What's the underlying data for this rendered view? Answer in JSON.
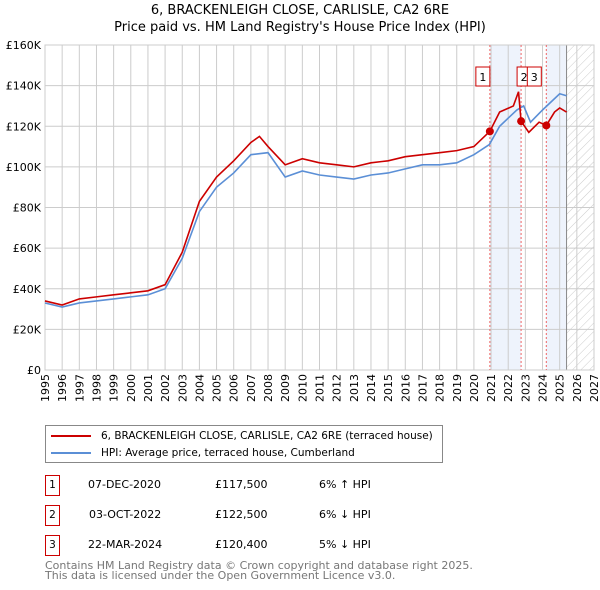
{
  "title": "6, BRACKENLEIGH CLOSE, CARLISLE, CA2 6RE",
  "subtitle": "Price paid vs. HM Land Registry's House Price Index (HPI)",
  "colors": {
    "property": "#cc0000",
    "hpi": "#5b8fd6",
    "shade": "#eef3fc"
  },
  "chart_data": {
    "type": "line",
    "xlim": [
      1995,
      2027
    ],
    "ylim": [
      0,
      160000
    ],
    "x_ticks": [
      "1995",
      "1996",
      "1997",
      "1998",
      "1999",
      "2000",
      "2001",
      "2002",
      "2003",
      "2004",
      "2005",
      "2006",
      "2007",
      "2008",
      "2009",
      "2010",
      "2011",
      "2012",
      "2013",
      "2014",
      "2015",
      "2016",
      "2017",
      "2018",
      "2019",
      "2020",
      "2021",
      "2022",
      "2023",
      "2024",
      "2025",
      "2026",
      "2027"
    ],
    "y_ticks": [
      {
        "v": 0,
        "label": "£0"
      },
      {
        "v": 20000,
        "label": "£20K"
      },
      {
        "v": 40000,
        "label": "£40K"
      },
      {
        "v": 60000,
        "label": "£60K"
      },
      {
        "v": 80000,
        "label": "£80K"
      },
      {
        "v": 100000,
        "label": "£100K"
      },
      {
        "v": 120000,
        "label": "£120K"
      },
      {
        "v": 140000,
        "label": "£140K"
      },
      {
        "v": 160000,
        "label": "£160K"
      }
    ],
    "data_end": 2025.4,
    "series": [
      {
        "name": "6, BRACKENLEIGH CLOSE, CARLISLE, CA2 6RE (terraced house)",
        "key": "property",
        "points": [
          [
            1995,
            34000
          ],
          [
            1996,
            32000
          ],
          [
            1997,
            35000
          ],
          [
            1998,
            36000
          ],
          [
            1999,
            37000
          ],
          [
            2000,
            38000
          ],
          [
            2001,
            39000
          ],
          [
            2002,
            42000
          ],
          [
            2003,
            58000
          ],
          [
            2004,
            83000
          ],
          [
            2005,
            95000
          ],
          [
            2006,
            103000
          ],
          [
            2007,
            112000
          ],
          [
            2007.5,
            115000
          ],
          [
            2008,
            110000
          ],
          [
            2009,
            101000
          ],
          [
            2010,
            104000
          ],
          [
            2011,
            102000
          ],
          [
            2012,
            101000
          ],
          [
            2013,
            100000
          ],
          [
            2014,
            102000
          ],
          [
            2015,
            103000
          ],
          [
            2016,
            105000
          ],
          [
            2017,
            106000
          ],
          [
            2018,
            107000
          ],
          [
            2019,
            108000
          ],
          [
            2020,
            110000
          ],
          [
            2020.93,
            117500
          ],
          [
            2021.5,
            127000
          ],
          [
            2022.3,
            130000
          ],
          [
            2022.6,
            137000
          ],
          [
            2022.75,
            122500
          ],
          [
            2023.2,
            117000
          ],
          [
            2023.8,
            122000
          ],
          [
            2024.22,
            120400
          ],
          [
            2024.7,
            127000
          ],
          [
            2025,
            129000
          ],
          [
            2025.4,
            127000
          ]
        ]
      },
      {
        "name": "HPI: Average price, terraced house, Cumberland",
        "key": "hpi",
        "points": [
          [
            1995,
            33000
          ],
          [
            1996,
            31000
          ],
          [
            1997,
            33000
          ],
          [
            1998,
            34000
          ],
          [
            1999,
            35000
          ],
          [
            2000,
            36000
          ],
          [
            2001,
            37000
          ],
          [
            2002,
            40000
          ],
          [
            2003,
            55000
          ],
          [
            2004,
            78000
          ],
          [
            2005,
            90000
          ],
          [
            2006,
            97000
          ],
          [
            2007,
            106000
          ],
          [
            2008,
            107000
          ],
          [
            2009,
            95000
          ],
          [
            2010,
            98000
          ],
          [
            2011,
            96000
          ],
          [
            2012,
            95000
          ],
          [
            2013,
            94000
          ],
          [
            2014,
            96000
          ],
          [
            2015,
            97000
          ],
          [
            2016,
            99000
          ],
          [
            2017,
            101000
          ],
          [
            2018,
            101000
          ],
          [
            2019,
            102000
          ],
          [
            2020,
            106000
          ],
          [
            2020.9,
            111000
          ],
          [
            2021.5,
            120000
          ],
          [
            2022.5,
            128000
          ],
          [
            2022.9,
            130000
          ],
          [
            2023.3,
            122000
          ],
          [
            2024,
            128000
          ],
          [
            2024.5,
            132000
          ],
          [
            2025,
            136000
          ],
          [
            2025.4,
            135000
          ]
        ]
      }
    ],
    "sales": [
      {
        "id": "1",
        "x": 2020.93,
        "y": 117500,
        "date": "07-DEC-2020",
        "price": "£117,500",
        "hpi": "6% ↑ HPI"
      },
      {
        "id": "2",
        "x": 2022.75,
        "y": 122500,
        "date": "03-OCT-2022",
        "price": "£122,500",
        "hpi": "6% ↓ HPI"
      },
      {
        "id": "3",
        "x": 2024.22,
        "y": 120400,
        "date": "22-MAR-2024",
        "price": "£120,400",
        "hpi": "5% ↓ HPI"
      }
    ]
  },
  "footer": {
    "line1": "Contains HM Land Registry data © Crown copyright and database right 2025.",
    "line2": "This data is licensed under the Open Government Licence v3.0."
  }
}
